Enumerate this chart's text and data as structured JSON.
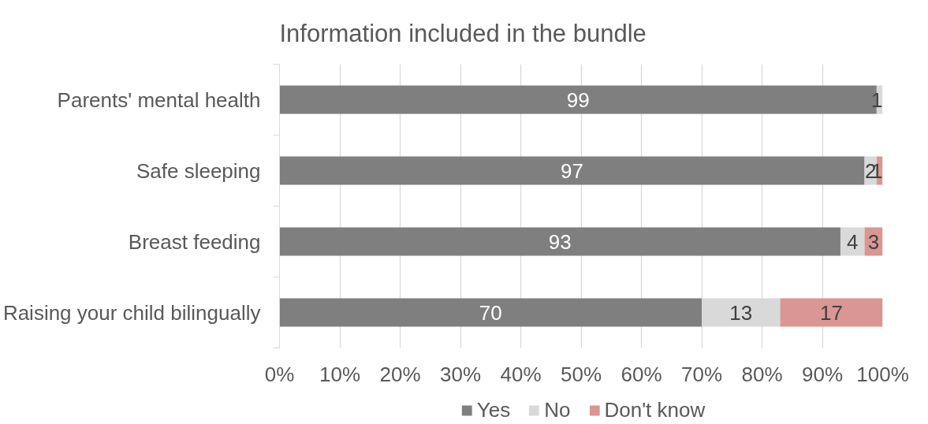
{
  "chart_data": {
    "type": "bar",
    "orientation": "horizontal",
    "stacked": true,
    "title": "Information included in the bundle",
    "categories": [
      "Parents' mental health",
      "Safe sleeping",
      "Breast feeding",
      "Raising your child bilingually"
    ],
    "series": [
      {
        "name": "Yes",
        "color": "#7f7f7f",
        "values": [
          99,
          97,
          93,
          70
        ]
      },
      {
        "name": "No",
        "color": "#d9d9d9",
        "values": [
          1,
          2,
          4,
          13
        ]
      },
      {
        "name": "Don't know",
        "color": "#d99694",
        "values": [
          null,
          1,
          3,
          17
        ]
      }
    ],
    "xlim": [
      0,
      100
    ],
    "xticks": [
      {
        "value": 0,
        "label": "0%"
      },
      {
        "value": 10,
        "label": "10%"
      },
      {
        "value": 20,
        "label": "20%"
      },
      {
        "value": 30,
        "label": "30%"
      },
      {
        "value": 40,
        "label": "40%"
      },
      {
        "value": 50,
        "label": "50%"
      },
      {
        "value": 60,
        "label": "60%"
      },
      {
        "value": 70,
        "label": "70%"
      },
      {
        "value": 80,
        "label": "80%"
      },
      {
        "value": 90,
        "label": "90%"
      },
      {
        "value": 100,
        "label": "100%"
      }
    ],
    "data_labels": true,
    "grid": "x",
    "legend": "bottom"
  }
}
